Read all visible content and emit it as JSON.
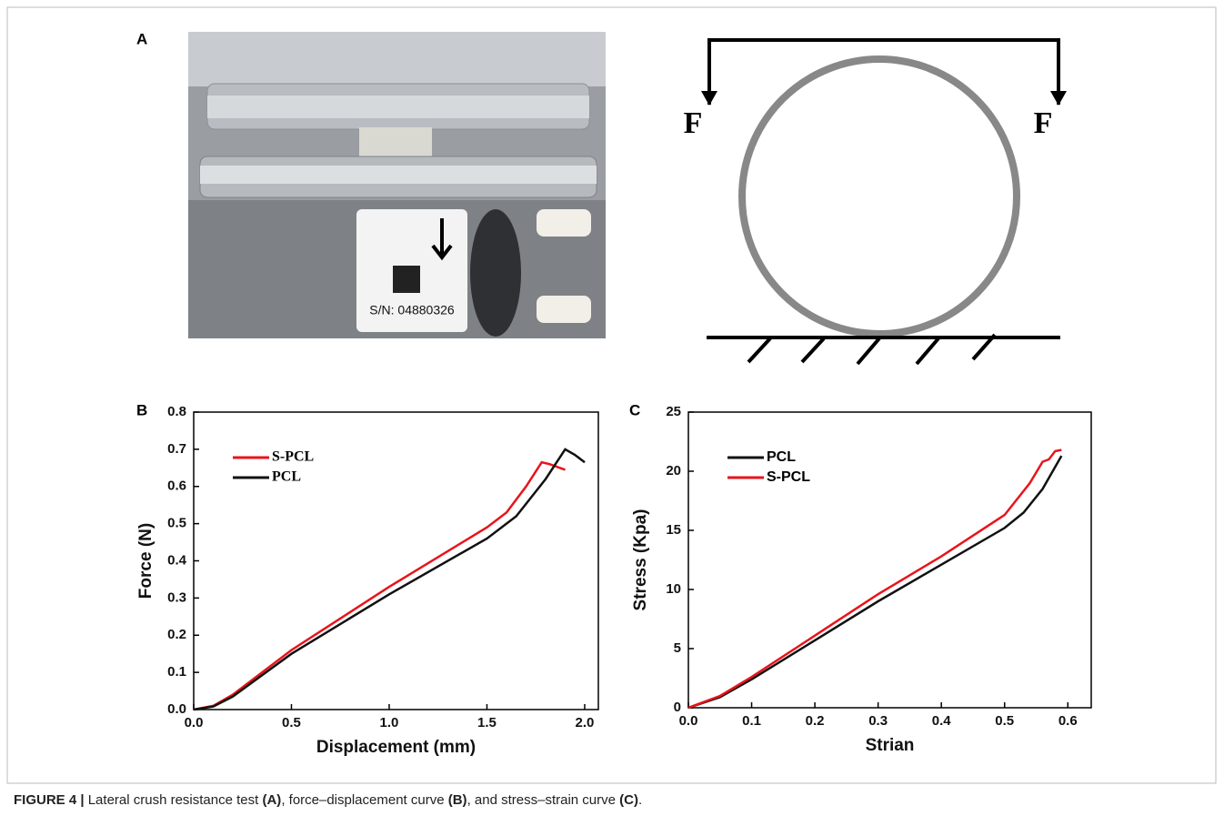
{
  "panel_labels": [
    "A",
    "B",
    "C"
  ],
  "photo": {
    "serial": "S/N: 04880326"
  },
  "diagram": {
    "force_left": "F",
    "force_right": "F"
  },
  "chart_data": [
    {
      "type": "line",
      "xlabel": "Displacement (mm)",
      "ylabel": "Force (N)",
      "xlim": [
        0,
        2.07
      ],
      "ylim": [
        0,
        0.8
      ],
      "xticks": [
        {
          "value": 0,
          "label": "0.0"
        },
        0.5,
        {
          "value": 1,
          "label": "1.0"
        },
        1.5,
        {
          "value": 2,
          "label": "2.0"
        }
      ],
      "yticks": [
        {
          "value": 0,
          "label": "0.0"
        },
        0.1,
        0.2,
        0.3,
        0.4,
        0.5,
        0.6,
        0.7,
        0.8
      ],
      "legend": "upper left",
      "series": [
        {
          "name": "S-PCL",
          "color": "#e8141b",
          "x": [
            0,
            0.1,
            0.2,
            0.5,
            1.0,
            1.5,
            1.6,
            1.7,
            1.78,
            1.82,
            1.9
          ],
          "values": [
            0,
            0.01,
            0.04,
            0.16,
            0.33,
            0.49,
            0.53,
            0.6,
            0.665,
            0.66,
            0.645
          ]
        },
        {
          "name": "PCL",
          "color": "#111111",
          "x": [
            0,
            0.1,
            0.2,
            0.5,
            1.0,
            1.5,
            1.65,
            1.8,
            1.9,
            1.95,
            2.0
          ],
          "values": [
            0,
            0.008,
            0.035,
            0.15,
            0.31,
            0.46,
            0.52,
            0.62,
            0.7,
            0.685,
            0.665
          ]
        }
      ]
    },
    {
      "type": "line",
      "xlabel": "Strian",
      "ylabel": "Stress (Kpa)",
      "xlim": [
        0,
        0.637
      ],
      "ylim": [
        0,
        25
      ],
      "xticks": [
        {
          "value": 0,
          "label": "0.0"
        },
        0.1,
        0.2,
        0.3,
        0.4,
        0.5,
        0.6
      ],
      "yticks": [
        0,
        5,
        10,
        15,
        20,
        25
      ],
      "legend": "upper left",
      "series": [
        {
          "name": "PCL",
          "color": "#111111",
          "x": [
            0,
            0.05,
            0.1,
            0.2,
            0.3,
            0.4,
            0.5,
            0.53,
            0.56,
            0.59
          ],
          "values": [
            0,
            0.9,
            2.4,
            5.7,
            9,
            12.1,
            15.2,
            16.5,
            18.5,
            21.3
          ]
        },
        {
          "name": "S-PCL",
          "color": "#e8141b",
          "x": [
            0,
            0.05,
            0.1,
            0.2,
            0.3,
            0.4,
            0.5,
            0.54,
            0.56,
            0.57,
            0.58,
            0.59
          ],
          "values": [
            0,
            1,
            2.6,
            6.1,
            9.6,
            12.8,
            16.3,
            19,
            20.8,
            21,
            21.7,
            21.8
          ]
        }
      ]
    }
  ],
  "caption": {
    "parts": [
      {
        "text": "FIGURE 4 |",
        "bold": true
      },
      {
        "text": " Lateral crush resistance test ",
        "bold": false
      },
      {
        "text": "(A)",
        "bold": true
      },
      {
        "text": ", force–displacement curve ",
        "bold": false
      },
      {
        "text": "(B)",
        "bold": true
      },
      {
        "text": ", and stress–strain curve ",
        "bold": false
      },
      {
        "text": "(C)",
        "bold": true
      },
      {
        "text": ".",
        "bold": false
      }
    ]
  }
}
